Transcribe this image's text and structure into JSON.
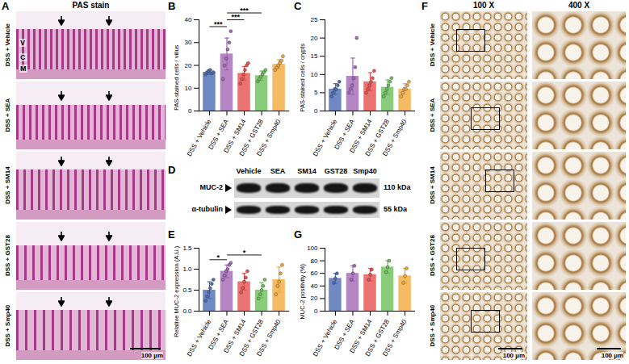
{
  "chart_data": [
    {
      "type": "bar",
      "panel": "B",
      "y_label": "PAS-stained cells / villus",
      "categories": [
        "DSS + Vehicle",
        "DSS + SEA",
        "DSS + SM14",
        "DSS + GST28",
        "DSS + Smp40"
      ],
      "values": [
        17,
        25,
        16.5,
        15.5,
        20.5
      ],
      "errors": [
        1,
        7,
        3,
        2,
        2
      ],
      "points": [
        [
          16,
          17,
          17.5,
          18,
          16.5,
          17
        ],
        [
          14,
          20,
          23,
          27,
          30,
          35
        ],
        [
          12,
          14,
          16,
          18,
          20,
          21
        ],
        [
          13,
          14,
          15,
          16,
          17,
          18
        ],
        [
          18,
          19,
          20,
          21,
          22,
          24
        ]
      ],
      "colors": [
        "#4a6bb5",
        "#a366b8",
        "#e6504f",
        "#6dbf5a",
        "#f4a93b"
      ],
      "ylim": [
        0,
        40
      ],
      "yticks": [
        0,
        10,
        20,
        30,
        40
      ],
      "significance": [
        {
          "from": "DSS + Vehicle",
          "to": "DSS + SEA",
          "label": "***"
        },
        {
          "from": "DSS + SEA",
          "to": "DSS + SM14",
          "label": "***"
        },
        {
          "from": "DSS + SEA",
          "to": "DSS + GST28",
          "label": "***"
        }
      ]
    },
    {
      "type": "bar",
      "panel": "C",
      "y_label": "PAS-stained cells / crypts",
      "categories": [
        "DSS + Vehicle",
        "DSS + SEA",
        "DSS + SM14",
        "DSS + GST28",
        "DSS + Smp40"
      ],
      "values": [
        6,
        9.5,
        8,
        6.5,
        6
      ],
      "errors": [
        1.5,
        5,
        2.5,
        2,
        1.5
      ],
      "points": [
        [
          4,
          5,
          6,
          6,
          7,
          8
        ],
        [
          5,
          6,
          7,
          9,
          12,
          20
        ],
        [
          5,
          6,
          7,
          8,
          9,
          11
        ],
        [
          4,
          5,
          6,
          7,
          8,
          9
        ],
        [
          4,
          5,
          6,
          6,
          7,
          8
        ]
      ],
      "colors": [
        "#4a6bb5",
        "#a366b8",
        "#e6504f",
        "#6dbf5a",
        "#f4a93b"
      ],
      "ylim": [
        0,
        25
      ],
      "yticks": [
        0,
        5,
        10,
        15,
        20,
        25
      ],
      "significance": []
    },
    {
      "type": "bar",
      "panel": "E",
      "y_label": "Relative MUC-2 expression (A.U.)",
      "categories": [
        "DSS + Vehicle",
        "DSS + SEA",
        "DSS + SM14",
        "DSS + GST28",
        "DSS + Smp40"
      ],
      "values": [
        0.5,
        0.95,
        0.7,
        0.5,
        0.75
      ],
      "errors": [
        0.2,
        0.15,
        0.2,
        0.18,
        0.3
      ],
      "points": [
        [
          0.25,
          0.35,
          0.45,
          0.55,
          0.65,
          0.75
        ],
        [
          0.75,
          0.85,
          0.95,
          1.0,
          1.1,
          1.15
        ],
        [
          0.45,
          0.55,
          0.7,
          0.8,
          0.95
        ],
        [
          0.3,
          0.4,
          0.5,
          0.6,
          0.75
        ],
        [
          0.4,
          0.6,
          0.7,
          0.9,
          1.1
        ]
      ],
      "colors": [
        "#4a6bb5",
        "#a366b8",
        "#e6504f",
        "#6dbf5a",
        "#f4a93b"
      ],
      "ylim": [
        0,
        1.5
      ],
      "yticks": [
        {
          "value": 0,
          "label": "0.0"
        },
        {
          "value": 0.5,
          "label": "0.5"
        },
        {
          "value": 1,
          "label": "1.0"
        },
        {
          "value": 1.5,
          "label": "1.5"
        }
      ],
      "significance": [
        {
          "from": "DSS + Vehicle",
          "to": "DSS + SEA",
          "label": "*"
        },
        {
          "from": "DSS + SEA",
          "to": "DSS + GST28",
          "label": "*"
        }
      ]
    },
    {
      "type": "bar",
      "panel": "G",
      "y_label": "MUC-2 positivity (%)",
      "categories": [
        "DSS + Vehicle",
        "DSS + SEA",
        "DSS + SM14",
        "DSS + GST28",
        "DSS + Smp40"
      ],
      "values": [
        52,
        60,
        58,
        70,
        56
      ],
      "errors": [
        8,
        12,
        10,
        10,
        12
      ],
      "points": [
        [
          45,
          52,
          60
        ],
        [
          50,
          60,
          72
        ],
        [
          50,
          58,
          66
        ],
        [
          62,
          70,
          80
        ],
        [
          45,
          56,
          68
        ]
      ],
      "colors": [
        "#4a6bb5",
        "#a366b8",
        "#e6504f",
        "#6dbf5a",
        "#f4a93b"
      ],
      "ylim": [
        0,
        100
      ],
      "yticks": [
        0,
        20,
        40,
        60,
        80,
        100
      ],
      "significance": []
    }
  ],
  "panels": {
    "histology_pas": {
      "letter": "A",
      "title": "PAS stain",
      "rows": [
        "DSS + Vehicle",
        "DSS + SEA",
        "DSS + SM14",
        "DSS + GST28",
        "DSS + Smp40"
      ],
      "layer_labels": [
        "V",
        "C",
        "M"
      ],
      "scale_bar": "100 µm"
    },
    "western_blot": {
      "letter": "D",
      "lanes": [
        "Vehicle",
        "SEA",
        "SM14",
        "GST28",
        "Smp40"
      ],
      "rows": [
        {
          "label": "MUC-2",
          "size": "110 kDa"
        },
        {
          "label": "α-tubulin",
          "size": "55 kDa"
        }
      ]
    },
    "ihc": {
      "letter": "F",
      "columns": [
        "100 X",
        "400 X"
      ],
      "rows": [
        "DSS + Vehicle",
        "DSS + SEA",
        "DSS + SM14",
        "DSS + GST28",
        "DSS + Smp40"
      ],
      "scale_bar": "100 µm"
    }
  }
}
